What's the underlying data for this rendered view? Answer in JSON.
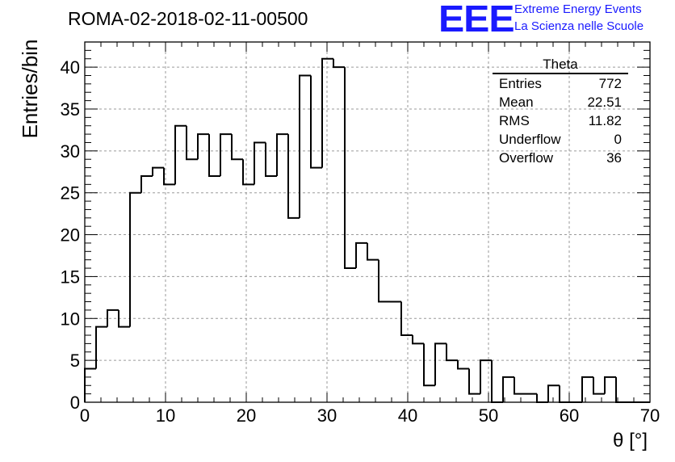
{
  "header": {
    "title": "ROMA-02-2018-02-11-00500",
    "logo_text": "EEE",
    "logo_line1": "Extreme Energy Events",
    "logo_line2": "La Scienza nelle Scuole",
    "logo_color": "#1a1aff"
  },
  "stats": {
    "title": "Theta",
    "rows": [
      {
        "label": "Entries",
        "value": "772"
      },
      {
        "label": "Mean",
        "value": "22.51"
      },
      {
        "label": "RMS",
        "value": "11.82"
      },
      {
        "label": "Underflow",
        "value": "0"
      },
      {
        "label": "Overflow",
        "value": "36"
      }
    ]
  },
  "chart_data": {
    "type": "histogram",
    "title": "ROMA-02-2018-02-11-00500",
    "xlabel": "θ [°]",
    "ylabel": "Entries/bin",
    "xlim": [
      0,
      70
    ],
    "ylim": [
      0,
      43
    ],
    "bin_width": 1.4,
    "grid": true,
    "x_ticks": [
      0,
      10,
      20,
      30,
      40,
      50,
      60,
      70
    ],
    "y_ticks": [
      0,
      5,
      10,
      15,
      20,
      25,
      30,
      35,
      40
    ],
    "values": [
      4,
      9,
      11,
      9,
      25,
      27,
      28,
      26,
      33,
      29,
      32,
      27,
      32,
      29,
      26,
      31,
      27,
      32,
      22,
      39,
      28,
      41,
      40,
      16,
      19,
      17,
      12,
      12,
      8,
      7,
      2,
      7,
      5,
      4,
      1,
      5,
      0,
      3,
      1,
      1,
      0,
      2,
      0,
      0,
      3,
      1,
      3,
      0,
      0,
      0
    ]
  }
}
